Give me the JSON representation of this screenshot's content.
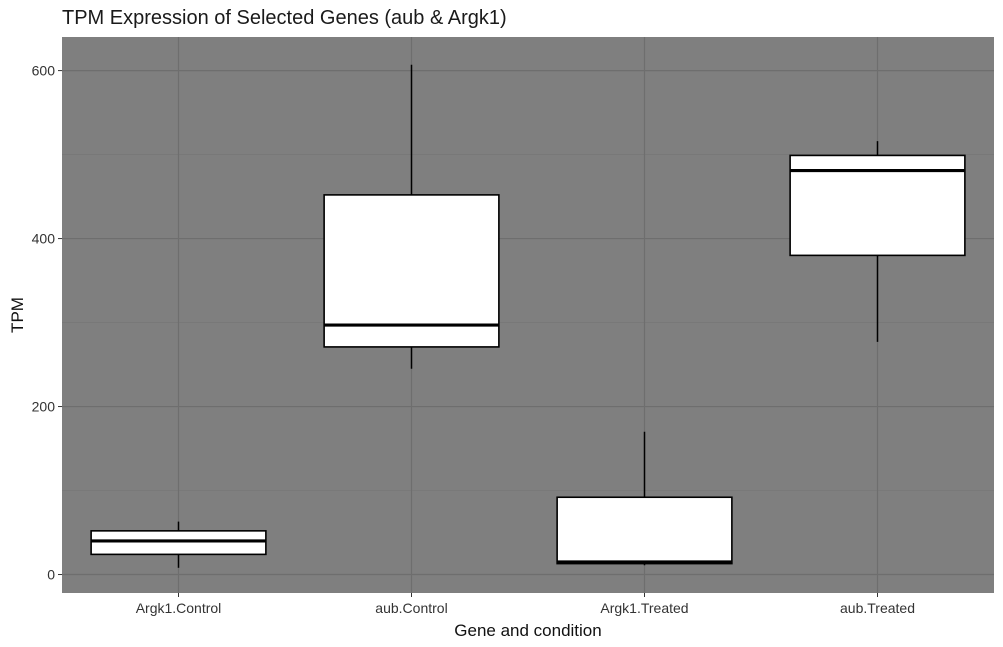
{
  "chart_data": {
    "type": "box",
    "title": "TPM Expression of Selected Genes (aub & Argk1)",
    "xlabel": "Gene and condition",
    "ylabel": "TPM",
    "ylim": [
      -22,
      640
    ],
    "yticks": [
      0,
      200,
      400,
      600
    ],
    "ytick_labels": [
      "0",
      "200",
      "400",
      "600"
    ],
    "categories": [
      "Argk1.Control",
      "aub.Control",
      "Argk1.Treated",
      "aub.Treated"
    ],
    "boxes": [
      {
        "category": "Argk1.Control",
        "whisker_low": 8,
        "q1": 24,
        "median": 40,
        "q3": 52,
        "whisker_high": 63
      },
      {
        "category": "aub.Control",
        "whisker_low": 245,
        "q1": 271,
        "median": 297,
        "q3": 452,
        "whisker_high": 607
      },
      {
        "category": "Argk1.Treated",
        "whisker_low": 11,
        "q1": 13,
        "median": 15,
        "q3": 92,
        "whisker_high": 170
      },
      {
        "category": "aub.Treated",
        "whisker_low": 277,
        "q1": 380,
        "median": 481,
        "q3": 499,
        "whisker_high": 516
      }
    ],
    "grid": true,
    "colors": {
      "panel_background": "#7f7f7f",
      "major_grid": "#6e6e6e",
      "minor_grid": "#777777",
      "box_fill": "#ffffff",
      "box_stroke": "#000000"
    }
  }
}
